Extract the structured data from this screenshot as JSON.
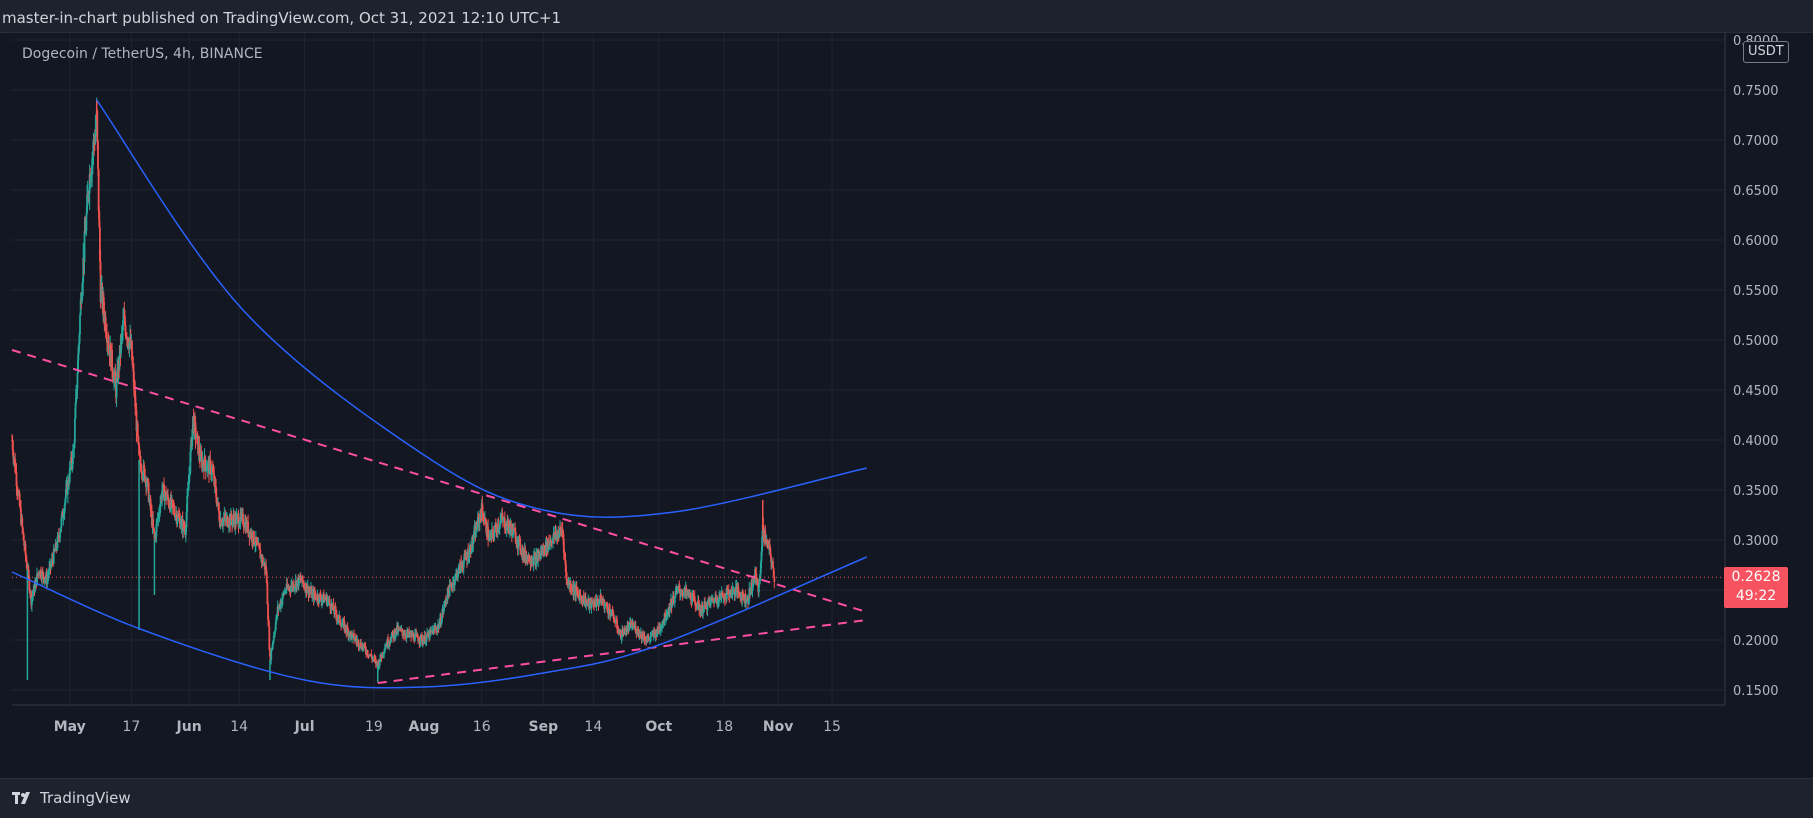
{
  "header": {
    "published": "master-in-chart published on TradingView.com, Oct 31, 2021 12:10 UTC+1"
  },
  "symbol": {
    "label": "Dogecoin / TetherUS, 4h, BINANCE"
  },
  "unit": "USDT",
  "price_tag": {
    "price": "0.2628",
    "countdown": "49:22"
  },
  "footer": {
    "brand": "TradingView",
    "logo_icon": "tradingview-logo-icon"
  },
  "colors": {
    "background": "#131722",
    "up": "#26a69a",
    "down": "#ef5350",
    "trend_blue": "#2962ff",
    "trend_pink": "#ff4fa2",
    "price_tag": "#f7525f"
  },
  "chart_data": {
    "type": "candlestick",
    "interval": "4h",
    "ylim": [
      0.1,
      0.8
    ],
    "y_ticks": [
      "0.8000",
      "0.7500",
      "0.7000",
      "0.6500",
      "0.6000",
      "0.5500",
      "0.5000",
      "0.4500",
      "0.4000",
      "0.3500",
      "0.3000",
      "0.2500",
      "0.2000",
      "0.1500"
    ],
    "x_ticks": [
      {
        "date": "2021-05-01",
        "label": "May"
      },
      {
        "date": "2021-05-17",
        "label": "17"
      },
      {
        "date": "2021-06-01",
        "label": "Jun"
      },
      {
        "date": "2021-06-14",
        "label": "14"
      },
      {
        "date": "2021-07-01",
        "label": "Jul"
      },
      {
        "date": "2021-07-19",
        "label": "19"
      },
      {
        "date": "2021-08-01",
        "label": "Aug"
      },
      {
        "date": "2021-08-16",
        "label": "16"
      },
      {
        "date": "2021-09-01",
        "label": "Sep"
      },
      {
        "date": "2021-09-14",
        "label": "14"
      },
      {
        "date": "2021-10-01",
        "label": "Oct"
      },
      {
        "date": "2021-10-18",
        "label": "18"
      },
      {
        "date": "2021-11-01",
        "label": "Nov"
      },
      {
        "date": "2021-11-15",
        "label": "15"
      }
    ],
    "price_path": [
      [
        "2021-04-16",
        0.4
      ],
      [
        "2021-04-19",
        0.3
      ],
      [
        "2021-04-21",
        0.24
      ],
      [
        "2021-04-23",
        0.27
      ],
      [
        "2021-04-25",
        0.26
      ],
      [
        "2021-04-28",
        0.3
      ],
      [
        "2021-05-02",
        0.39
      ],
      [
        "2021-05-04",
        0.55
      ],
      [
        "2021-05-06",
        0.66
      ],
      [
        "2021-05-08",
        0.72
      ],
      [
        "2021-05-09",
        0.55
      ],
      [
        "2021-05-11",
        0.5
      ],
      [
        "2021-05-13",
        0.45
      ],
      [
        "2021-05-15",
        0.52
      ],
      [
        "2021-05-17",
        0.49
      ],
      [
        "2021-05-19",
        0.38
      ],
      [
        "2021-05-21",
        0.36
      ],
      [
        "2021-05-23",
        0.3
      ],
      [
        "2021-05-25",
        0.35
      ],
      [
        "2021-05-28",
        0.33
      ],
      [
        "2021-05-31",
        0.31
      ],
      [
        "2021-06-02",
        0.42
      ],
      [
        "2021-06-04",
        0.38
      ],
      [
        "2021-06-07",
        0.37
      ],
      [
        "2021-06-09",
        0.32
      ],
      [
        "2021-06-12",
        0.32
      ],
      [
        "2021-06-15",
        0.32
      ],
      [
        "2021-06-18",
        0.3
      ],
      [
        "2021-06-21",
        0.27
      ],
      [
        "2021-06-22",
        0.18
      ],
      [
        "2021-06-24",
        0.23
      ],
      [
        "2021-06-26",
        0.25
      ],
      [
        "2021-06-30",
        0.26
      ],
      [
        "2021-07-03",
        0.245
      ],
      [
        "2021-07-07",
        0.24
      ],
      [
        "2021-07-10",
        0.22
      ],
      [
        "2021-07-13",
        0.205
      ],
      [
        "2021-07-17",
        0.19
      ],
      [
        "2021-07-20",
        0.175
      ],
      [
        "2021-07-22",
        0.195
      ],
      [
        "2021-07-25",
        0.21
      ],
      [
        "2021-07-28",
        0.205
      ],
      [
        "2021-08-01",
        0.2
      ],
      [
        "2021-08-05",
        0.215
      ],
      [
        "2021-08-07",
        0.245
      ],
      [
        "2021-08-10",
        0.27
      ],
      [
        "2021-08-13",
        0.29
      ],
      [
        "2021-08-16",
        0.33
      ],
      [
        "2021-08-18",
        0.3
      ],
      [
        "2021-08-21",
        0.32
      ],
      [
        "2021-08-24",
        0.31
      ],
      [
        "2021-08-27",
        0.285
      ],
      [
        "2021-08-30",
        0.28
      ],
      [
        "2021-09-03",
        0.3
      ],
      [
        "2021-09-06",
        0.31
      ],
      [
        "2021-09-07",
        0.26
      ],
      [
        "2021-09-09",
        0.25
      ],
      [
        "2021-09-13",
        0.235
      ],
      [
        "2021-09-16",
        0.24
      ],
      [
        "2021-09-19",
        0.225
      ],
      [
        "2021-09-21",
        0.205
      ],
      [
        "2021-09-24",
        0.215
      ],
      [
        "2021-09-28",
        0.2
      ],
      [
        "2021-10-01",
        0.21
      ],
      [
        "2021-10-04",
        0.235
      ],
      [
        "2021-10-06",
        0.25
      ],
      [
        "2021-10-09",
        0.245
      ],
      [
        "2021-10-12",
        0.23
      ],
      [
        "2021-10-15",
        0.24
      ],
      [
        "2021-10-18",
        0.245
      ],
      [
        "2021-10-21",
        0.25
      ],
      [
        "2021-10-24",
        0.24
      ],
      [
        "2021-10-26",
        0.265
      ],
      [
        "2021-10-27",
        0.25
      ],
      [
        "2021-10-28",
        0.31
      ],
      [
        "2021-10-30",
        0.285
      ],
      [
        "2021-10-31",
        0.2628
      ]
    ],
    "spikes": [
      {
        "date": "2021-05-08",
        "high": 0.74
      },
      {
        "date": "2021-04-20",
        "low": 0.16
      },
      {
        "date": "2021-05-19",
        "low": 0.21
      },
      {
        "date": "2021-05-23",
        "low": 0.245
      },
      {
        "date": "2021-06-22",
        "low": 0.16
      },
      {
        "date": "2021-07-20",
        "low": 0.158
      },
      {
        "date": "2021-10-28",
        "high": 0.34
      }
    ],
    "last_price": 0.2628,
    "trendlines": [
      {
        "style": "dashed",
        "color": "pink",
        "points": [
          [
            "2021-04-16",
            0.49
          ],
          [
            "2021-11-24",
            0.228
          ]
        ]
      },
      {
        "style": "dashed",
        "color": "pink",
        "points": [
          [
            "2021-07-20",
            0.157
          ],
          [
            "2021-11-24",
            0.22
          ]
        ]
      },
      {
        "style": "solid",
        "color": "blue",
        "curve": true,
        "points": [
          [
            "2021-05-08",
            0.74
          ],
          [
            "2021-06-15",
            0.53
          ],
          [
            "2021-08-01",
            0.385
          ],
          [
            "2021-09-01",
            0.33
          ],
          [
            "2021-10-05",
            0.328
          ],
          [
            "2021-11-24",
            0.372
          ]
        ]
      },
      {
        "style": "solid",
        "color": "blue",
        "curve": true,
        "points": [
          [
            "2021-04-16",
            0.268
          ],
          [
            "2021-05-20",
            0.21
          ],
          [
            "2021-07-01",
            0.16
          ],
          [
            "2021-08-01",
            0.153
          ],
          [
            "2021-09-01",
            0.167
          ],
          [
            "2021-10-01",
            0.195
          ],
          [
            "2021-11-24",
            0.283
          ]
        ]
      }
    ]
  }
}
